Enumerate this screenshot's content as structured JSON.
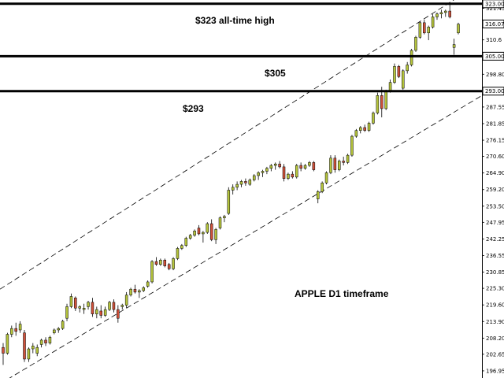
{
  "chart_data": {
    "type": "candlestick",
    "annotations": {
      "ath_label": "$323 all-time high",
      "mid_label": "$305",
      "low_label": "$293",
      "timeframe_label": "APPLE D1 timeframe"
    },
    "levels": [
      {
        "price": 323.0,
        "label": "323.00"
      },
      {
        "price": 305.0,
        "label": "305.00"
      },
      {
        "price": 293.0,
        "label": "293.00"
      }
    ],
    "current_price": {
      "price": 316.07,
      "label": "316.07"
    },
    "y_ticks": [
      "321.45",
      "316.07",
      "310.6",
      "305.00",
      "298.80",
      "293.00",
      "287.55",
      "281.85",
      "276.15",
      "270.60",
      "264.90",
      "259.20",
      "253.50",
      "247.95",
      "242.25",
      "236.55",
      "230.85",
      "225.30",
      "219.60",
      "213.90",
      "208.20",
      "202.65",
      "196.95"
    ],
    "y_tick_values": [
      321.45,
      316.07,
      310.6,
      305.0,
      298.8,
      293.0,
      287.55,
      281.85,
      276.15,
      270.6,
      264.9,
      259.2,
      253.5,
      247.95,
      242.25,
      236.55,
      230.85,
      225.3,
      219.6,
      213.9,
      208.2,
      202.65,
      196.95
    ],
    "ylim": [
      194.5,
      324.3
    ],
    "channel": {
      "upper": {
        "start": 225.0,
        "end": 330.5
      },
      "lower": {
        "start": 192.5,
        "end": 291.5
      }
    },
    "colors": {
      "up": "#b5c43b",
      "down": "#d0513a",
      "line": "#000000"
    },
    "candles": [
      [
        205.0,
        206.5,
        199.0,
        203.0
      ],
      [
        203.0,
        210.0,
        202.5,
        209.5
      ],
      [
        209.5,
        212.5,
        208.5,
        211.5
      ],
      [
        211.5,
        213.5,
        209.0,
        210.5
      ],
      [
        211.0,
        214.0,
        210.0,
        213.0
      ],
      [
        210.0,
        211.0,
        200.0,
        201.0
      ],
      [
        201.0,
        205.0,
        200.0,
        204.5
      ],
      [
        204.5,
        206.5,
        203.0,
        205.5
      ],
      [
        203.0,
        206.0,
        202.0,
        205.0
      ],
      [
        206.0,
        208.0,
        205.0,
        207.5
      ],
      [
        207.5,
        208.5,
        205.5,
        206.5
      ],
      [
        206.5,
        209.0,
        206.0,
        208.5
      ],
      [
        210.0,
        211.5,
        209.5,
        211.0
      ],
      [
        211.0,
        212.0,
        210.0,
        211.5
      ],
      [
        211.5,
        214.5,
        211.0,
        214.0
      ],
      [
        215.0,
        220.0,
        214.0,
        219.0
      ],
      [
        219.0,
        223.5,
        218.5,
        222.5
      ],
      [
        222.0,
        222.5,
        217.5,
        218.5
      ],
      [
        218.5,
        219.5,
        217.0,
        219.0
      ],
      [
        218.0,
        220.0,
        216.5,
        218.5
      ],
      [
        219.0,
        221.0,
        218.0,
        220.5
      ],
      [
        220.5,
        222.0,
        215.5,
        216.5
      ],
      [
        216.5,
        219.0,
        215.0,
        218.0
      ],
      [
        217.5,
        219.5,
        215.0,
        216.0
      ],
      [
        216.0,
        219.0,
        215.5,
        218.0
      ],
      [
        218.0,
        221.0,
        217.5,
        220.5
      ],
      [
        220.5,
        221.5,
        217.0,
        218.0
      ],
      [
        218.0,
        219.5,
        213.5,
        215.0
      ],
      [
        219.0,
        220.0,
        218.0,
        219.5
      ],
      [
        219.5,
        224.0,
        218.5,
        223.0
      ],
      [
        223.0,
        225.5,
        222.5,
        225.0
      ],
      [
        225.0,
        226.5,
        223.5,
        224.0
      ],
      [
        224.0,
        225.0,
        222.0,
        224.5
      ],
      [
        224.5,
        226.0,
        224.0,
        225.5
      ],
      [
        226.0,
        228.0,
        225.5,
        227.5
      ],
      [
        227.5,
        235.0,
        227.0,
        234.5
      ],
      [
        234.5,
        236.0,
        233.0,
        233.5
      ],
      [
        233.5,
        235.5,
        233.0,
        235.0
      ],
      [
        235.0,
        235.5,
        232.5,
        233.0
      ],
      [
        233.5,
        234.0,
        231.5,
        232.0
      ],
      [
        232.0,
        236.0,
        231.5,
        235.5
      ],
      [
        235.5,
        239.5,
        235.0,
        239.0
      ],
      [
        239.0,
        240.5,
        238.5,
        240.0
      ],
      [
        240.0,
        243.0,
        239.5,
        242.5
      ],
      [
        242.5,
        244.0,
        242.0,
        243.5
      ],
      [
        243.5,
        245.5,
        243.0,
        245.0
      ],
      [
        246.0,
        247.0,
        243.5,
        244.0
      ],
      [
        244.0,
        245.0,
        241.0,
        244.5
      ],
      [
        244.5,
        248.0,
        244.0,
        247.5
      ],
      [
        247.5,
        249.0,
        241.5,
        242.0
      ],
      [
        242.0,
        246.0,
        240.5,
        245.5
      ],
      [
        246.0,
        250.0,
        245.5,
        249.5
      ],
      [
        249.5,
        250.5,
        248.0,
        250.0
      ],
      [
        251.0,
        260.0,
        250.5,
        259.0
      ],
      [
        259.0,
        261.0,
        257.5,
        260.0
      ],
      [
        260.0,
        262.0,
        259.0,
        261.0
      ],
      [
        261.0,
        262.5,
        260.0,
        262.0
      ],
      [
        262.0,
        263.0,
        260.5,
        261.5
      ],
      [
        261.0,
        263.0,
        260.5,
        262.5
      ],
      [
        262.5,
        264.5,
        262.0,
        264.0
      ],
      [
        264.0,
        265.5,
        262.5,
        265.0
      ],
      [
        265.0,
        266.0,
        263.5,
        265.5
      ],
      [
        265.5,
        267.0,
        264.5,
        266.5
      ],
      [
        266.5,
        268.0,
        265.5,
        267.5
      ],
      [
        267.5,
        268.5,
        266.0,
        268.0
      ],
      [
        268.0,
        269.0,
        266.5,
        267.0
      ],
      [
        267.0,
        268.0,
        262.0,
        263.0
      ],
      [
        263.0,
        265.0,
        262.5,
        264.5
      ],
      [
        264.5,
        265.5,
        263.0,
        263.5
      ],
      [
        263.5,
        268.0,
        263.0,
        267.5
      ],
      [
        267.5,
        268.5,
        265.5,
        266.5
      ],
      [
        266.5,
        268.0,
        266.0,
        267.5
      ],
      [
        267.5,
        269.0,
        267.0,
        268.5
      ],
      [
        268.5,
        269.0,
        265.5,
        266.0
      ],
      [
        256.0,
        259.0,
        254.5,
        258.5
      ],
      [
        258.5,
        262.0,
        258.0,
        261.5
      ],
      [
        261.5,
        265.5,
        261.0,
        265.0
      ],
      [
        265.0,
        271.0,
        264.5,
        270.0
      ],
      [
        270.0,
        271.0,
        265.0,
        266.0
      ],
      [
        266.0,
        269.5,
        265.5,
        269.0
      ],
      [
        269.0,
        270.5,
        267.5,
        268.5
      ],
      [
        268.5,
        271.5,
        268.0,
        271.0
      ],
      [
        271.0,
        278.0,
        270.5,
        277.5
      ],
      [
        277.5,
        280.0,
        277.0,
        279.5
      ],
      [
        279.5,
        281.0,
        278.5,
        280.5
      ],
      [
        280.5,
        281.5,
        279.0,
        279.5
      ],
      [
        279.5,
        282.5,
        279.0,
        282.0
      ],
      [
        282.0,
        286.0,
        281.5,
        285.5
      ],
      [
        285.5,
        292.5,
        285.0,
        291.5
      ],
      [
        291.5,
        294.5,
        284.0,
        287.0
      ],
      [
        287.0,
        293.5,
        286.5,
        293.0
      ],
      [
        293.0,
        297.0,
        292.5,
        296.0
      ],
      [
        296.0,
        302.5,
        295.5,
        301.5
      ],
      [
        301.5,
        302.0,
        297.5,
        298.0
      ],
      [
        294.0,
        300.5,
        293.5,
        300.0
      ],
      [
        300.0,
        303.0,
        299.0,
        302.0
      ],
      [
        302.0,
        307.5,
        301.5,
        307.0
      ],
      [
        307.0,
        312.0,
        306.5,
        311.5
      ],
      [
        311.5,
        317.0,
        311.0,
        316.5
      ],
      [
        316.5,
        317.5,
        312.5,
        313.0
      ],
      [
        313.0,
        315.5,
        310.5,
        315.0
      ],
      [
        315.0,
        319.5,
        314.5,
        318.5
      ],
      [
        318.5,
        320.0,
        317.5,
        319.5
      ],
      [
        319.5,
        321.0,
        318.0,
        320.0
      ],
      [
        320.0,
        321.0,
        318.5,
        320.5
      ],
      [
        320.5,
        323.5,
        318.0,
        318.5
      ],
      [
        308.0,
        311.0,
        305.5,
        309.0
      ],
      [
        313.0,
        316.5,
        312.5,
        316.0
      ]
    ]
  }
}
